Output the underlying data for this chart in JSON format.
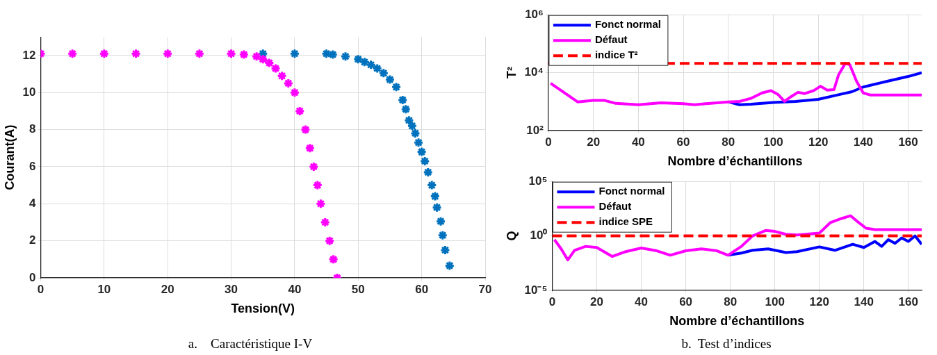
{
  "chart_data": [
    {
      "type": "scatter",
      "xlabel": "Tension(V)",
      "ylabel": "Courant(A)",
      "marker": "cross",
      "grid": true,
      "xlim": [
        0,
        70
      ],
      "xticks": [
        0,
        10,
        20,
        30,
        40,
        50,
        60,
        70
      ],
      "ylim": [
        0,
        13
      ],
      "yticks": [
        0,
        2,
        4,
        6,
        8,
        10,
        12
      ],
      "annotations": [
        "a.    Caractéristique I-V"
      ],
      "series": [
        {
          "color": "#0072bd",
          "x": [
            35,
            40,
            45,
            46,
            48,
            50,
            51,
            52,
            53,
            54,
            55,
            56,
            57,
            57.5,
            58,
            58.5,
            59,
            59.5,
            60,
            60.5,
            61,
            61.6,
            62.1,
            62.4,
            63,
            63.3,
            63.7,
            64.4
          ],
          "values": [
            12.1,
            12.1,
            12.1,
            12.05,
            11.95,
            11.8,
            11.65,
            11.5,
            11.3,
            11.05,
            10.7,
            10.3,
            9.6,
            9.1,
            8.5,
            8.2,
            7.8,
            7.3,
            6.8,
            6.3,
            5.7,
            5.0,
            4.4,
            3.8,
            3.05,
            2.3,
            1.5,
            0.66
          ]
        },
        {
          "color": "#ff00ff",
          "x": [
            0,
            5,
            10,
            15,
            20,
            25,
            30,
            32,
            34,
            35,
            36,
            37,
            38,
            39,
            40,
            40.8,
            41.7,
            42.4,
            43,
            43.6,
            44.1,
            44.8,
            45.5,
            46.1,
            46.7
          ],
          "values": [
            12.1,
            12.1,
            12.1,
            12.1,
            12.1,
            12.1,
            12.1,
            12.05,
            11.95,
            11.8,
            11.6,
            11.3,
            10.9,
            10.5,
            10.0,
            9.0,
            8.0,
            7.0,
            6.0,
            5.0,
            4.0,
            3.0,
            2.0,
            1.0,
            0
          ]
        }
      ]
    },
    {
      "type": "line",
      "xlabel": "Nombre d’échantillons",
      "ylabel": "T²",
      "log": "y",
      "grid": true,
      "legend": "top left",
      "marker": "none",
      "line_style": "solid",
      "xlim": [
        0,
        166
      ],
      "xticks": [
        0,
        20,
        40,
        60,
        80,
        100,
        120,
        140,
        160
      ],
      "ylim": [
        100,
        1000000
      ],
      "yticks": [
        {
          "value": 100,
          "label": "10²"
        },
        {
          "value": 10000,
          "label": "10⁴"
        },
        {
          "value": 1000000,
          "label": "10⁶"
        }
      ],
      "ref_lines": [
        {
          "axis": "y",
          "value": 21000,
          "label": "indice T²",
          "color": "#ff0000",
          "line_style": "dashed"
        }
      ],
      "annotations": [
        "b.  Test d’indices"
      ],
      "series": [
        {
          "name": "Fonct normal",
          "color": "#0000ff",
          "x": [
            80,
            85,
            90,
            100,
            110,
            120,
            130,
            135,
            140,
            150,
            160,
            166
          ],
          "values": [
            980,
            780,
            810,
            930,
            1020,
            1200,
            1800,
            2200,
            3200,
            4900,
            7400,
            10000
          ]
        },
        {
          "name": "Défaut",
          "color": "#ff00ff",
          "x": [
            1,
            13,
            20,
            25,
            30,
            40,
            50,
            60,
            65,
            70,
            80,
            85,
            90,
            95,
            99,
            102,
            105,
            108,
            111,
            114,
            118,
            121,
            124,
            127,
            129,
            132,
            134,
            137,
            140,
            143,
            166
          ],
          "values": [
            4300,
            980,
            1100,
            1100,
            870,
            780,
            910,
            850,
            780,
            850,
            980,
            1020,
            1290,
            2000,
            2400,
            1800,
            1020,
            1500,
            2100,
            1900,
            2400,
            3400,
            2500,
            2600,
            8300,
            21000,
            19000,
            5100,
            2000,
            1700,
            1700
          ]
        }
      ]
    },
    {
      "type": "line",
      "xlabel": "Nombre d’échantillons",
      "ylabel": "Q",
      "log": "y",
      "grid": true,
      "legend": "top left",
      "marker": "none",
      "line_style": "solid",
      "xlim": [
        0,
        166
      ],
      "xticks": [
        0,
        20,
        40,
        60,
        80,
        100,
        120,
        140,
        160
      ],
      "ylim": [
        1e-05,
        100000
      ],
      "yticks": [
        {
          "value": 1e-05,
          "label": "10⁻⁵"
        },
        {
          "value": 1,
          "label": "10⁰"
        },
        {
          "value": 100000,
          "label": "10⁵"
        }
      ],
      "ref_lines": [
        {
          "axis": "y",
          "value": 1,
          "label": "indice SPE",
          "color": "#ff0000",
          "line_style": "dashed"
        }
      ],
      "series": [
        {
          "name": "Fonct normal",
          "color": "#0000ff",
          "x": [
            79,
            85,
            90,
            97,
            105,
            110,
            120,
            127,
            135,
            140,
            145,
            148,
            151,
            154,
            157,
            160,
            163,
            166
          ],
          "values": [
            0.017,
            0.027,
            0.048,
            0.065,
            0.03,
            0.036,
            0.098,
            0.048,
            0.17,
            0.087,
            0.31,
            0.11,
            0.45,
            0.21,
            0.66,
            0.31,
            1,
            0.17
          ]
        },
        {
          "name": "Défaut",
          "color": "#ff00ff",
          "x": [
            1,
            4,
            7,
            10,
            15,
            20,
            27,
            33,
            40,
            47,
            53,
            60,
            67,
            74,
            79,
            85,
            90,
            96,
            100,
            105,
            110,
            120,
            125,
            130,
            134,
            137,
            141,
            145,
            166
          ],
          "values": [
            0.45,
            0.065,
            0.0063,
            0.048,
            0.11,
            0.087,
            0.013,
            0.036,
            0.078,
            0.043,
            0.017,
            0.043,
            0.065,
            0.043,
            0.017,
            0.11,
            1,
            3.2,
            2.6,
            1.4,
            1.2,
            1.8,
            17,
            40,
            71,
            22,
            5.1,
            3.8,
            3.8
          ]
        }
      ]
    }
  ]
}
